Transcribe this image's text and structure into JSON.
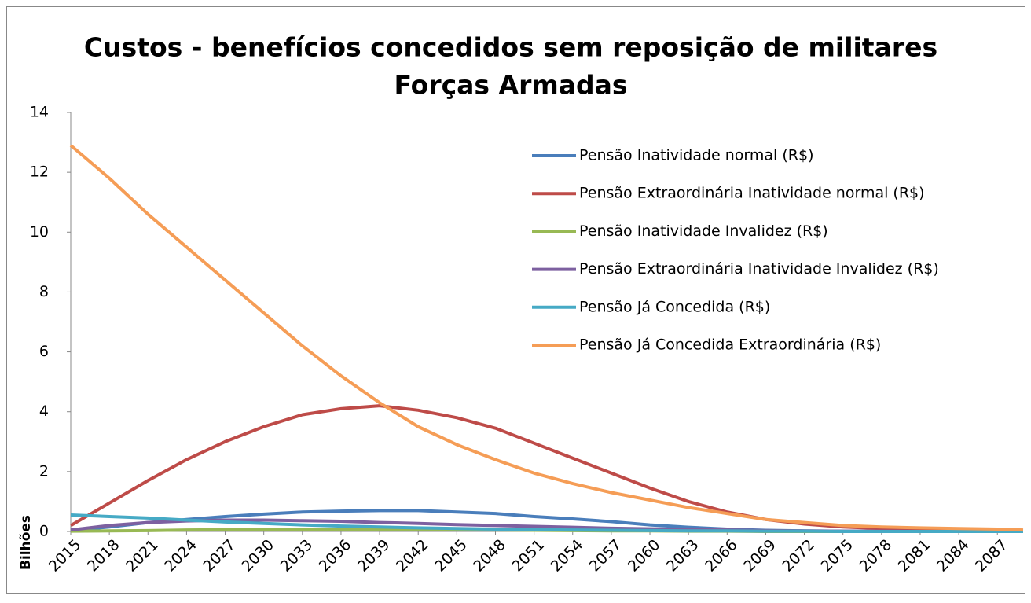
{
  "chart_data": {
    "type": "line",
    "title": [
      "Custos - benefícios concedidos sem reposição de militares",
      "Forças Armadas"
    ],
    "y_label": "Bilhões",
    "x": [
      2015,
      2018,
      2021,
      2024,
      2027,
      2030,
      2033,
      2036,
      2039,
      2042,
      2045,
      2048,
      2051,
      2054,
      2057,
      2060,
      2063,
      2066,
      2069,
      2072,
      2075,
      2078,
      2081,
      2084,
      2087,
      2089
    ],
    "xlim": [
      2015,
      2089
    ],
    "xticks": [
      2015,
      2018,
      2021,
      2024,
      2027,
      2030,
      2033,
      2036,
      2039,
      2042,
      2045,
      2048,
      2051,
      2054,
      2057,
      2060,
      2063,
      2066,
      2069,
      2072,
      2075,
      2078,
      2081,
      2084,
      2087
    ],
    "ylim": [
      0,
      14
    ],
    "yticks": [
      0,
      2,
      4,
      6,
      8,
      10,
      12,
      14
    ],
    "series": [
      {
        "name": "Pensão Inatividade normal (R$)",
        "color": "#4a7ebb",
        "values": [
          0.03,
          0.15,
          0.3,
          0.4,
          0.5,
          0.58,
          0.65,
          0.68,
          0.7,
          0.7,
          0.65,
          0.6,
          0.5,
          0.42,
          0.33,
          0.22,
          0.14,
          0.08,
          0.04,
          0.02,
          0.01,
          0,
          0,
          0,
          0,
          0
        ]
      },
      {
        "name": "Pensão Extraordinária Inatividade normal (R$)",
        "color": "#be4b48",
        "values": [
          0.2,
          0.95,
          1.7,
          2.4,
          3.0,
          3.5,
          3.9,
          4.1,
          4.2,
          4.05,
          3.8,
          3.45,
          2.95,
          2.45,
          1.95,
          1.45,
          1.0,
          0.65,
          0.4,
          0.25,
          0.15,
          0.1,
          0.07,
          0.05,
          0.03,
          0.02
        ]
      },
      {
        "name": "Pensão Inatividade Invalidez (R$)",
        "color": "#98b954",
        "values": [
          0.01,
          0.02,
          0.03,
          0.05,
          0.06,
          0.07,
          0.07,
          0.07,
          0.07,
          0.07,
          0.06,
          0.05,
          0.04,
          0.03,
          0.02,
          0.02,
          0.01,
          0.01,
          0,
          0,
          0,
          0,
          0,
          0,
          0,
          0
        ]
      },
      {
        "name": "Pensão Extraordinária Inatividade  Invalidez (R$)",
        "color": "#7d60a0",
        "values": [
          0.05,
          0.2,
          0.3,
          0.35,
          0.38,
          0.38,
          0.36,
          0.34,
          0.3,
          0.27,
          0.23,
          0.2,
          0.17,
          0.14,
          0.11,
          0.09,
          0.07,
          0.05,
          0.03,
          0.02,
          0.01,
          0.01,
          0,
          0,
          0,
          0
        ]
      },
      {
        "name": "Pensão Já Concedida (R$)",
        "color": "#46aac5",
        "values": [
          0.55,
          0.5,
          0.45,
          0.38,
          0.32,
          0.27,
          0.22,
          0.18,
          0.15,
          0.12,
          0.1,
          0.08,
          0.06,
          0.05,
          0.04,
          0.03,
          0.02,
          0.02,
          0.01,
          0.01,
          0,
          0,
          0,
          0,
          0,
          0
        ]
      },
      {
        "name": "Pensão Já Concedida Extraordinária (R$)",
        "color": "#f59d56",
        "values": [
          12.9,
          11.8,
          10.6,
          9.5,
          8.4,
          7.3,
          6.2,
          5.2,
          4.3,
          3.5,
          2.9,
          2.4,
          1.95,
          1.6,
          1.3,
          1.05,
          0.8,
          0.6,
          0.4,
          0.3,
          0.2,
          0.15,
          0.12,
          0.1,
          0.08,
          0.05
        ]
      }
    ]
  }
}
